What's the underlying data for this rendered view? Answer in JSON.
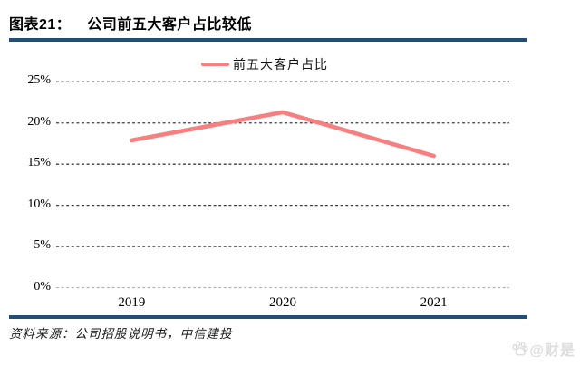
{
  "header": {
    "title_prefix": "图表21：",
    "title": "公司前五大客户占比较低"
  },
  "legend": {
    "label": "前五大客户占比"
  },
  "chart_data": {
    "type": "line",
    "title": "公司前五大客户占比较低",
    "categories": [
      "2019",
      "2020",
      "2021"
    ],
    "series": [
      {
        "name": "前五大客户占比",
        "values": [
          17.9,
          21.3,
          16.0
        ]
      }
    ],
    "unit": "%",
    "ylim": [
      0,
      25
    ],
    "ytick_values": [
      0,
      5,
      10,
      15,
      20,
      25
    ],
    "ytick_labels": [
      "0%",
      "5%",
      "10%",
      "15%",
      "20%",
      "25%"
    ],
    "grid": "horizontal-dashed",
    "legend_position": "top-center"
  },
  "footer": {
    "source": "资料来源：公司招股说明书，中信建投"
  },
  "watermark": {
    "icon": "baidu-paw-icon",
    "text": "@财是"
  },
  "colors": {
    "rule_blue": "#1F4E79",
    "line": "#F87F7F",
    "grid": "#3F3F3F",
    "zero_grid": "#B3B3B3",
    "watermark": "#DCDCDC"
  }
}
